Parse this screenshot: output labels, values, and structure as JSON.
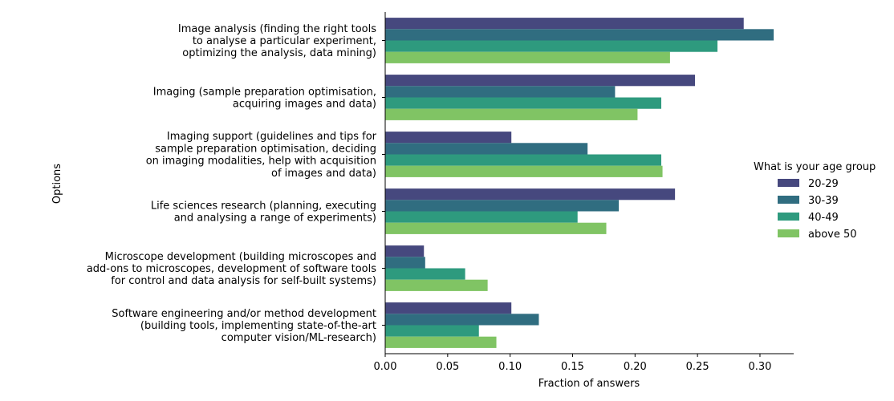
{
  "chart_data": {
    "type": "bar",
    "orientation": "horizontal",
    "xlabel": "Fraction of answers",
    "ylabel": "Options",
    "xlim": [
      0,
      0.327
    ],
    "xticks": [
      "0.00",
      "0.05",
      "0.10",
      "0.15",
      "0.20",
      "0.25",
      "0.30"
    ],
    "grid": false,
    "legend_title": "What is your age group",
    "legend_position": "right",
    "categories": [
      [
        "Image analysis (finding the right tools",
        "to analyse a particular experiment,",
        "optimizing the analysis, data mining)"
      ],
      [
        "Imaging (sample preparation optimisation,",
        "acquiring images and data)"
      ],
      [
        "Imaging support (guidelines and tips for",
        "sample preparation optimisation, deciding",
        "on imaging modalities, help with acquisition",
        "of images and data)"
      ],
      [
        "Life sciences research (planning, executing",
        "and analysing a range of experiments)"
      ],
      [
        "Microscope development (building microscopes and",
        "add-ons to microscopes, development of software tools",
        "for control and data analysis for self-built systems)"
      ],
      [
        "Software engineering and/or method development",
        "(building tools, implementing state-of-the-art",
        "computer vision/ML-research)"
      ]
    ],
    "series": [
      {
        "name": "20-29",
        "color": "#46487e",
        "values": [
          0.287,
          0.248,
          0.101,
          0.232,
          0.031,
          0.101
        ]
      },
      {
        "name": "30-39",
        "color": "#306d80",
        "values": [
          0.311,
          0.184,
          0.162,
          0.187,
          0.032,
          0.123
        ]
      },
      {
        "name": "40-49",
        "color": "#2e9a7e",
        "values": [
          0.266,
          0.221,
          0.221,
          0.154,
          0.064,
          0.075
        ]
      },
      {
        "name": "above 50",
        "color": "#80c464",
        "values": [
          0.228,
          0.202,
          0.222,
          0.177,
          0.082,
          0.089
        ]
      }
    ]
  }
}
